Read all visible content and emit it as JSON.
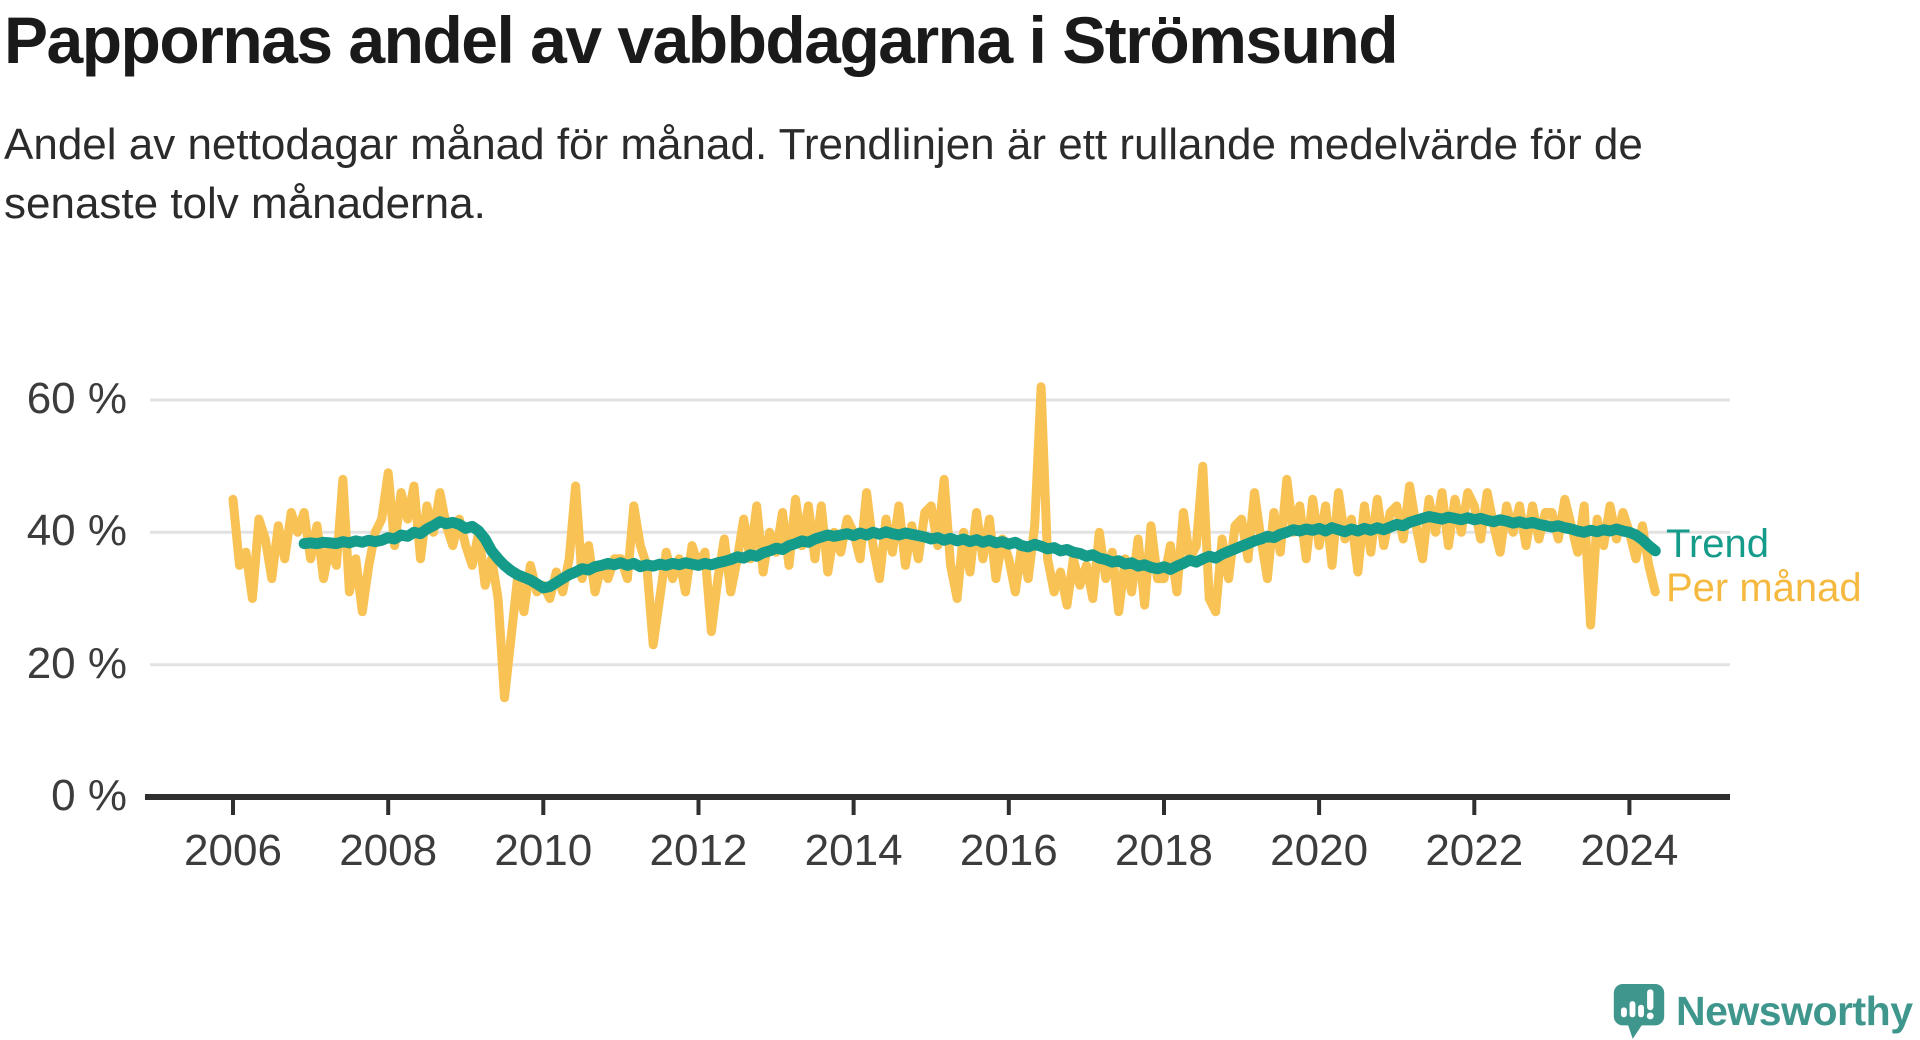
{
  "header": {
    "title": "Pappornas andel av vabbdagarna i Strömsund",
    "subtitle": "Andel av nettodagar månad för månad. Trendlinjen är ett rullande medelvärde för de senaste tolv månaderna."
  },
  "legend": {
    "trend_label": "Trend",
    "monthly_label": "Per månad"
  },
  "branding": {
    "logo_text": "Newsworthy",
    "logo_icon": "newsworthy-speech-bubble-bar-chart-icon"
  },
  "colors": {
    "monthly_line": "#F9C255",
    "trend_line": "#149B8A",
    "legend_monthly_text": "#F5B93F",
    "legend_trend_text": "#149B8A",
    "grid": "#E2E2E2",
    "axis": "#2f2f2f",
    "tick_text": "#3c3c3c",
    "logo": "#3F968C"
  },
  "chart_data": {
    "type": "line",
    "title": "Pappornas andel av vabbdagarna i Strömsund",
    "xlabel": "",
    "ylabel": "",
    "unit": "%",
    "grid": "horizontal",
    "legend_position": "right-of-line-ends",
    "x_ticks": [
      2006,
      2008,
      2010,
      2012,
      2014,
      2016,
      2018,
      2020,
      2022,
      2024
    ],
    "y_tick_labels": [
      "0 %",
      "20 %",
      "40 %",
      "60 %"
    ],
    "y_grid_values": [
      20,
      40,
      60
    ],
    "ylim": [
      0,
      65
    ],
    "x_start": "2006-01",
    "x_end": "2024-05",
    "series": [
      {
        "name": "Per månad",
        "color": "#F9C255",
        "start": "2006-01",
        "freq": "monthly",
        "start_offset_months": 0,
        "width": 9,
        "values": [
          45,
          35,
          37,
          30,
          42,
          39,
          33,
          41,
          36,
          43,
          40,
          43,
          36,
          41,
          33,
          38,
          35,
          48,
          31,
          36,
          28,
          35,
          40,
          42,
          49,
          38,
          46,
          42,
          47,
          36,
          44,
          40,
          46,
          41,
          38,
          42,
          38,
          35,
          40,
          32,
          36,
          30,
          15,
          24,
          33,
          28,
          35,
          31,
          32,
          30,
          34,
          31,
          36,
          47,
          33,
          38,
          31,
          35,
          33,
          36,
          36,
          33,
          44,
          38,
          35,
          23,
          30,
          37,
          33,
          36,
          31,
          38,
          35,
          37,
          25,
          33,
          39,
          31,
          36,
          42,
          36,
          44,
          34,
          40,
          37,
          43,
          35,
          45,
          38,
          44,
          36,
          44,
          34,
          40,
          37,
          42,
          40,
          36,
          46,
          38,
          33,
          42,
          37,
          44,
          35,
          41,
          36,
          43,
          44,
          38,
          48,
          35,
          30,
          40,
          34,
          43,
          36,
          42,
          33,
          39,
          36,
          31,
          38,
          33,
          41,
          62,
          36,
          31,
          34,
          29,
          36,
          32,
          35,
          30,
          40,
          33,
          37,
          28,
          36,
          31,
          39,
          29,
          41,
          33,
          33,
          38,
          31,
          43,
          36,
          38,
          50,
          30,
          28,
          39,
          33,
          41,
          42,
          36,
          46,
          39,
          33,
          43,
          37,
          48,
          40,
          44,
          36,
          45,
          38,
          44,
          35,
          46,
          39,
          42,
          34,
          44,
          37,
          45,
          38,
          43,
          44,
          39,
          47,
          41,
          36,
          45,
          40,
          46,
          38,
          45,
          40,
          46,
          44,
          39,
          46,
          41,
          37,
          44,
          40,
          44,
          38,
          44,
          39,
          43,
          43,
          39,
          45,
          41,
          37,
          44,
          26,
          42,
          38,
          44,
          39,
          43,
          40,
          36,
          41,
          35,
          31
        ]
      },
      {
        "name": "Trend",
        "color": "#149B8A",
        "start": "2006-12",
        "freq": "monthly",
        "start_offset_months": 11,
        "width": 11,
        "description": "rullande medelvärde för de senaste tolv månaderna",
        "values": [
          38.3,
          38.4,
          38.3,
          38.5,
          38.4,
          38.3,
          38.6,
          38.4,
          38.7,
          38.5,
          38.8,
          38.6,
          38.8,
          39.2,
          39.0,
          39.6,
          39.4,
          40.0,
          39.8,
          40.5,
          41.0,
          41.6,
          41.3,
          41.5,
          41.2,
          40.6,
          40.9,
          40.2,
          39.0,
          37.2,
          36.0,
          35.0,
          34.2,
          33.6,
          33.2,
          32.8,
          32.2,
          31.6,
          31.8,
          32.4,
          33.0,
          33.6,
          34.0,
          34.5,
          34.3,
          34.8,
          35.0,
          35.3,
          35.1,
          35.4,
          35.0,
          35.3,
          34.8,
          35.1,
          34.9,
          35.2,
          35.0,
          35.3,
          35.1,
          35.4,
          35.2,
          35.0,
          35.3,
          35.1,
          35.4,
          35.6,
          35.9,
          36.3,
          36.1,
          36.6,
          36.4,
          36.9,
          37.2,
          37.6,
          37.4,
          38.0,
          38.3,
          38.7,
          38.5,
          39.0,
          39.3,
          39.6,
          39.4,
          39.6,
          39.8,
          39.5,
          39.9,
          39.6,
          40.0,
          39.7,
          40.1,
          39.8,
          39.6,
          39.9,
          39.7,
          39.5,
          39.3,
          39.0,
          39.2,
          38.8,
          39.1,
          38.7,
          39.0,
          38.6,
          38.9,
          38.5,
          38.8,
          38.4,
          38.6,
          38.2,
          38.5,
          38.0,
          37.8,
          38.2,
          37.9,
          37.5,
          37.7,
          37.2,
          37.4,
          37.0,
          36.8,
          36.4,
          36.6,
          36.1,
          35.9,
          35.5,
          35.7,
          35.2,
          35.4,
          34.9,
          35.1,
          34.7,
          34.5,
          34.8,
          34.4,
          34.9,
          35.3,
          35.8,
          35.5,
          36.0,
          36.4,
          36.1,
          36.7,
          37.1,
          37.5,
          37.9,
          38.3,
          38.7,
          39.0,
          39.4,
          39.2,
          39.7,
          40.0,
          40.4,
          40.2,
          40.5,
          40.3,
          40.6,
          40.2,
          40.7,
          40.4,
          40.1,
          40.5,
          40.2,
          40.6,
          40.3,
          40.7,
          40.4,
          40.8,
          41.2,
          41.0,
          41.5,
          41.8,
          42.1,
          42.4,
          42.2,
          42.0,
          42.3,
          42.1,
          41.9,
          42.2,
          41.9,
          42.1,
          41.8,
          41.6,
          41.9,
          41.7,
          41.4,
          41.6,
          41.3,
          41.5,
          41.2,
          41.0,
          40.8,
          41.0,
          40.7,
          40.5,
          40.2,
          40.0,
          40.3,
          40.1,
          40.4,
          40.2,
          40.5,
          40.2,
          40.0,
          39.6,
          38.9,
          38.0,
          37.2
        ]
      }
    ]
  }
}
